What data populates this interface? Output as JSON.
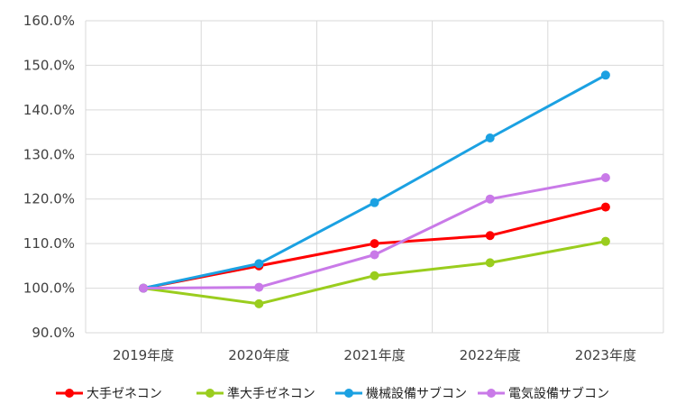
{
  "chart_data": {
    "type": "line",
    "title": "",
    "xlabel": "",
    "ylabel": "",
    "categories": [
      "2019年度",
      "2020年度",
      "2021年度",
      "2022年度",
      "2023年度"
    ],
    "ylim": [
      90,
      160
    ],
    "yticks": [
      90,
      100,
      110,
      120,
      130,
      140,
      150,
      160
    ],
    "ytick_labels": [
      "90.0%",
      "100.0%",
      "110.0%",
      "120.0%",
      "130.0%",
      "140.0%",
      "150.0%",
      "160.0%"
    ],
    "grid": true,
    "legend_position": "bottom",
    "series": [
      {
        "name": "大手ゼネコン",
        "color": "#ff0000",
        "values": [
          100.0,
          105.0,
          110.0,
          111.8,
          118.2
        ]
      },
      {
        "name": "準大手ゼネコン",
        "color": "#9acd1e",
        "values": [
          100.0,
          96.5,
          102.8,
          105.7,
          110.5
        ]
      },
      {
        "name": "機械設備サブコン",
        "color": "#1ba1e2",
        "values": [
          100.0,
          105.5,
          119.2,
          133.7,
          147.8
        ]
      },
      {
        "name": "電気設備サブコン",
        "color": "#c97ae8",
        "values": [
          100.0,
          100.2,
          107.5,
          120.0,
          124.8
        ]
      }
    ]
  }
}
